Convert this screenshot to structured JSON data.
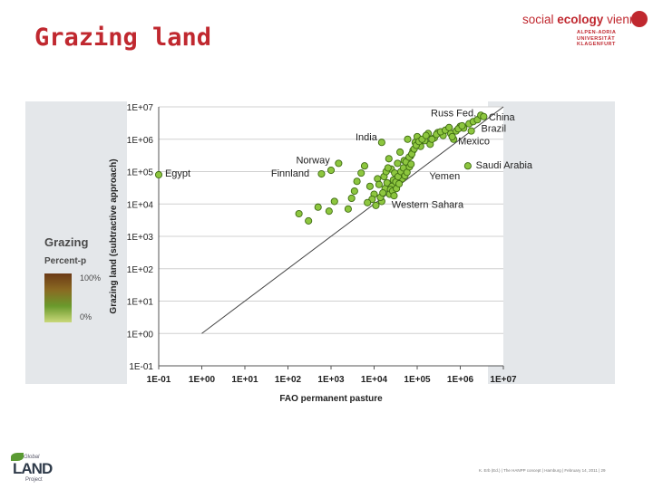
{
  "slide": {
    "title": "Grazing land",
    "footer": "K. Erb (Ed.) | The HANPP concept | Hamburg | February 14, 2011 | 29"
  },
  "logos": {
    "institute_line1a": "social",
    "institute_line1b": "ecology",
    "institute_line1c": "vienna",
    "institute_line2": [
      "ALPEN-ADRIA",
      "UNIVERSITÄT",
      "KLAGENFURT"
    ],
    "project_top": "Global",
    "project_main": "LAND",
    "project_bottom": "Project"
  },
  "map_legend": {
    "title": "Grazing",
    "subtitle": "Percent-p",
    "high": "100%",
    "low": "0%"
  },
  "colors": {
    "title_red": "#c0282f",
    "marker_fill": "#8dc63f",
    "marker_stroke": "#3e6b12",
    "line": "#444444"
  },
  "chart_data": {
    "type": "scatter",
    "xlabel": "FAO permanent pasture",
    "ylabel": "Grazing land (subtractive approach)",
    "xscale": "log",
    "yscale": "log",
    "xlim": [
      0.1,
      10000000
    ],
    "ylim": [
      0.1,
      10000000
    ],
    "x_ticks": [
      "1E-01",
      "1E+00",
      "1E+01",
      "1E+02",
      "1E+03",
      "1E+04",
      "1E+05",
      "1E+06",
      "1E+07"
    ],
    "y_ticks": [
      "1E-01",
      "1E+00",
      "1E+01",
      "1E+02",
      "1E+03",
      "1E+04",
      "1E+05",
      "1E+06",
      "1E+07"
    ],
    "grid": "horizontal",
    "reference_line": {
      "from": [
        1,
        1
      ],
      "to": [
        10000000,
        10000000
      ]
    },
    "labels": [
      {
        "text": "Russ Fed.",
        "x": 3000000,
        "y": 6500000,
        "anchor": "end"
      },
      {
        "text": "China",
        "x": 3600000,
        "y": 5000000,
        "anchor": "start"
      },
      {
        "text": "Brazil",
        "x": 2400000,
        "y": 2200000,
        "anchor": "start"
      },
      {
        "text": "India",
        "x": 15000,
        "y": 1200000,
        "anchor": "end"
      },
      {
        "text": "Mexico",
        "x": 700000,
        "y": 900000,
        "anchor": "start"
      },
      {
        "text": "Norway",
        "x": 1200,
        "y": 230000,
        "anchor": "end"
      },
      {
        "text": "Saudi Arabia",
        "x": 1800000,
        "y": 160000,
        "anchor": "start"
      },
      {
        "text": "Egypt",
        "x": 0.11,
        "y": 90000,
        "anchor": "start"
      },
      {
        "text": "Finnland",
        "x": 400,
        "y": 90000,
        "anchor": "end"
      },
      {
        "text": "Yemen",
        "x": 150000,
        "y": 75000,
        "anchor": "start"
      },
      {
        "text": "Western Sahara",
        "x": 20000,
        "y": 10000,
        "anchor": "start"
      }
    ],
    "points": [
      [
        0.1,
        80000
      ],
      [
        600,
        85000
      ],
      [
        1500,
        180000
      ],
      [
        1000,
        110000
      ],
      [
        300,
        3000
      ],
      [
        180,
        5000
      ],
      [
        500,
        8000
      ],
      [
        900,
        6000
      ],
      [
        1200,
        12000
      ],
      [
        2500,
        7000
      ],
      [
        3000,
        15000
      ],
      [
        3500,
        25000
      ],
      [
        4000,
        50000
      ],
      [
        5000,
        90000
      ],
      [
        6000,
        150000
      ],
      [
        8000,
        35000
      ],
      [
        10000,
        20000
      ],
      [
        12000,
        60000
      ],
      [
        15000,
        12000
      ],
      [
        18000,
        30000
      ],
      [
        20000,
        45000
      ],
      [
        22000,
        250000
      ],
      [
        25000,
        120000
      ],
      [
        30000,
        90000
      ],
      [
        35000,
        180000
      ],
      [
        40000,
        400000
      ],
      [
        45000,
        60000
      ],
      [
        50000,
        220000
      ],
      [
        60000,
        1000000
      ],
      [
        70000,
        300000
      ],
      [
        80000,
        450000
      ],
      [
        90000,
        800000
      ],
      [
        100000,
        1200000
      ],
      [
        120000,
        600000
      ],
      [
        150000,
        900000
      ],
      [
        180000,
        1500000
      ],
      [
        200000,
        700000
      ],
      [
        250000,
        1100000
      ],
      [
        300000,
        1600000
      ],
      [
        400000,
        1300000
      ],
      [
        500000,
        2000000
      ],
      [
        600000,
        1500000
      ],
      [
        800000,
        1800000
      ],
      [
        1000000,
        2500000
      ],
      [
        1200000,
        2200000
      ],
      [
        1600000,
        3000000
      ],
      [
        2000000,
        3500000
      ],
      [
        2500000,
        4000000
      ],
      [
        3000000,
        5500000
      ],
      [
        3500000,
        5000000
      ],
      [
        1500000,
        150000
      ],
      [
        1800000,
        1800000
      ],
      [
        700000,
        1000000
      ],
      [
        15000,
        800000
      ],
      [
        30000,
        40000
      ],
      [
        28000,
        55000
      ],
      [
        26000,
        35000
      ],
      [
        24000,
        28000
      ],
      [
        32000,
        48000
      ],
      [
        36000,
        70000
      ],
      [
        42000,
        100000
      ],
      [
        48000,
        130000
      ],
      [
        55000,
        200000
      ],
      [
        65000,
        280000
      ],
      [
        75000,
        350000
      ],
      [
        85000,
        500000
      ],
      [
        95000,
        650000
      ],
      [
        110000,
        850000
      ],
      [
        14000,
        16000
      ],
      [
        16000,
        22000
      ],
      [
        11000,
        9000
      ],
      [
        9000,
        14000
      ],
      [
        7000,
        11000
      ],
      [
        13000,
        40000
      ],
      [
        17000,
        70000
      ],
      [
        19000,
        100000
      ],
      [
        21000,
        130000
      ],
      [
        23000,
        20000
      ],
      [
        27000,
        25000
      ],
      [
        29000,
        18000
      ],
      [
        33000,
        30000
      ],
      [
        38000,
        42000
      ],
      [
        52000,
        75000
      ],
      [
        58000,
        95000
      ],
      [
        66000,
        140000
      ],
      [
        72000,
        170000
      ],
      [
        130000,
        1000000
      ],
      [
        160000,
        1300000
      ],
      [
        220000,
        1000000
      ],
      [
        280000,
        1400000
      ],
      [
        350000,
        1700000
      ],
      [
        450000,
        1900000
      ],
      [
        550000,
        2300000
      ],
      [
        650000,
        1200000
      ],
      [
        900000,
        2100000
      ],
      [
        1100000,
        2600000
      ]
    ]
  }
}
